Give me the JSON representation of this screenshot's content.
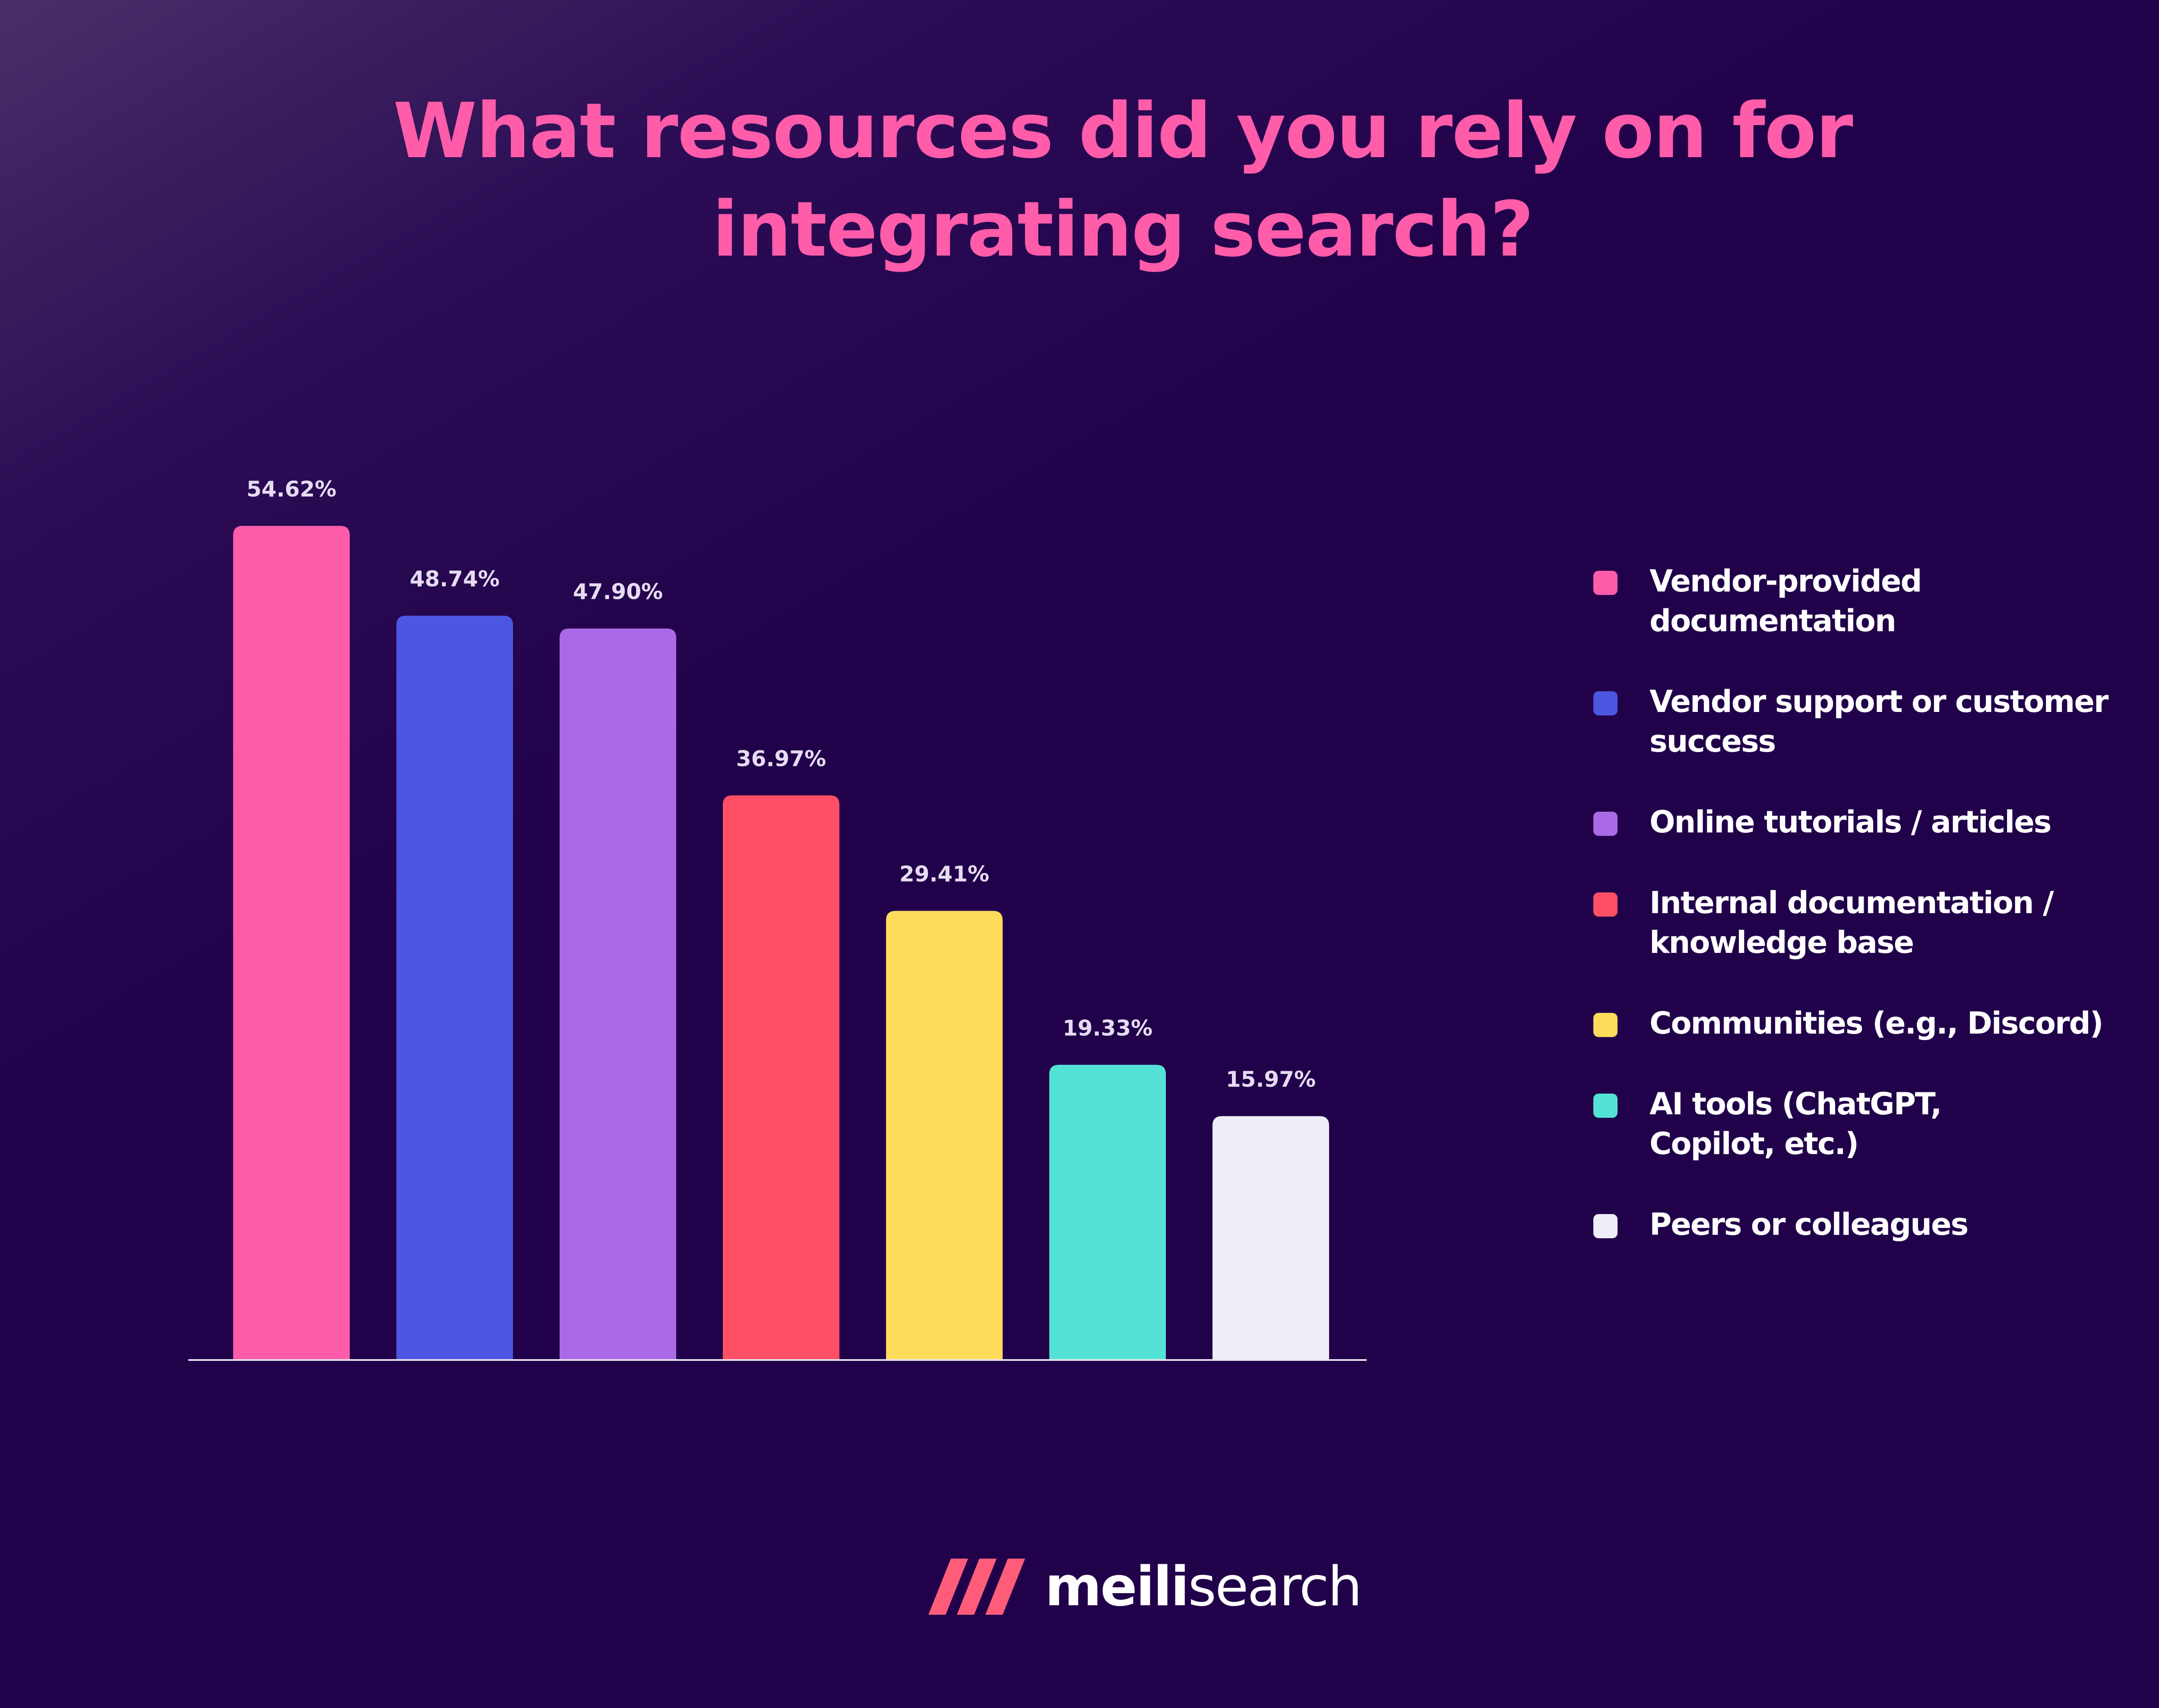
{
  "title_lines": [
    "What resources did you rely on for",
    "integrating search?"
  ],
  "chart_data": {
    "type": "bar",
    "title": "What resources did you rely on for integrating search?",
    "categories": [
      "Vendor-provided documentation",
      "Vendor support or customer success",
      "Online tutorials / articles",
      "Internal documentation / knowledge base",
      "Communities (e.g., Discord)",
      "AI tools (ChatGPT, Copilot, etc.)",
      "Peers or colleagues"
    ],
    "values": [
      54.62,
      48.74,
      47.9,
      36.97,
      29.41,
      19.33,
      15.97
    ],
    "data_labels": [
      "54.62%",
      "48.74%",
      "47.90%",
      "36.97%",
      "29.41%",
      "19.33%",
      "15.97%"
    ],
    "colors": [
      "#ff5caa",
      "#4c56e2",
      "#aa6ae6",
      "#ff4f64",
      "#ffdb5c",
      "#55e2d6",
      "#eeeef8"
    ],
    "ylim": [
      0,
      54.62
    ],
    "grid": false,
    "legend_position": "right"
  },
  "legend": [
    {
      "line1": "Vendor-provided",
      "line2": "documentation",
      "color": "#ff5caa"
    },
    {
      "line1": "Vendor support or customer",
      "line2": "success",
      "color": "#4c56e2"
    },
    {
      "line1": "Online tutorials / articles",
      "line2": "",
      "color": "#aa6ae6"
    },
    {
      "line1": "Internal documentation /",
      "line2": "knowledge base",
      "color": "#ff4f64"
    },
    {
      "line1": "Communities (e.g., Discord)",
      "line2": "",
      "color": "#ffdb5c"
    },
    {
      "line1": "AI tools (ChatGPT,",
      "line2": "Copilot, etc.)",
      "color": "#55e2d6"
    },
    {
      "line1": "Peers or colleagues",
      "line2": "",
      "color": "#eeeef8"
    }
  ],
  "brand": {
    "part1": "meili",
    "part2": "search",
    "logo_icon": "meilisearch-logo-icon",
    "logo_color": "#ff5c7a"
  }
}
